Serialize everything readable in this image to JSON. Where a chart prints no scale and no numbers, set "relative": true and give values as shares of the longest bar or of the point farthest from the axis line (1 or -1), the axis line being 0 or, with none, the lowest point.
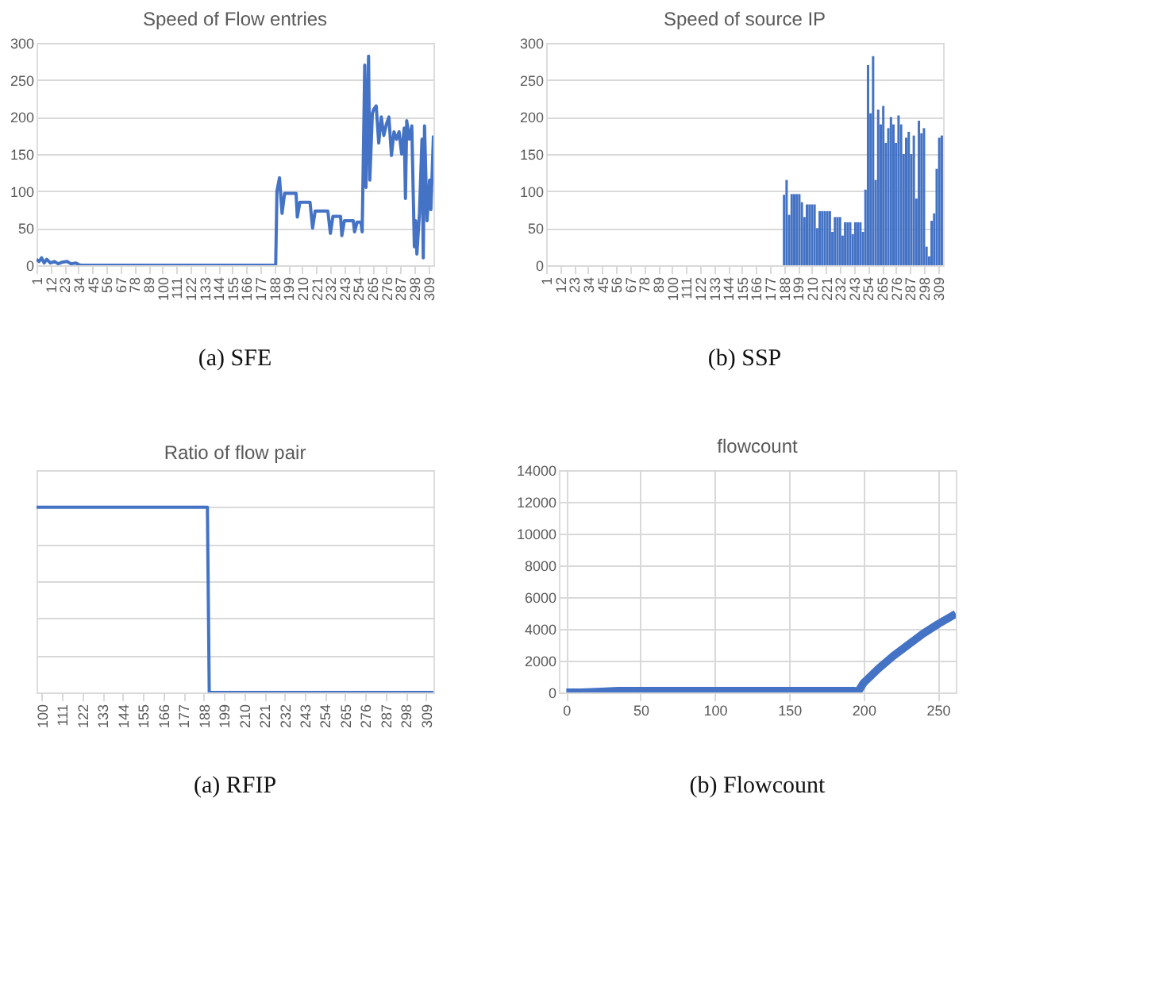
{
  "chart_data": [
    {
      "type": "line",
      "title": "Speed of Flow entries",
      "color": "#4472c4",
      "xlim": [
        1,
        313
      ],
      "xticks": [
        1,
        12,
        23,
        34,
        45,
        56,
        67,
        78,
        89,
        100,
        111,
        122,
        133,
        144,
        155,
        166,
        177,
        188,
        199,
        210,
        221,
        232,
        243,
        254,
        265,
        276,
        287,
        298,
        309
      ],
      "ylim": [
        0,
        300
      ],
      "yticks": [
        0,
        50,
        100,
        150,
        200,
        250,
        300
      ],
      "grid": "y",
      "annotations": [
        "(a) SFE"
      ],
      "x": [
        1,
        3,
        5,
        7,
        9,
        12,
        15,
        18,
        21,
        25,
        28,
        32,
        34,
        36,
        189,
        190,
        192,
        194,
        196,
        205,
        206,
        208,
        216,
        218,
        220,
        230,
        232,
        234,
        240,
        241,
        243,
        250,
        251,
        253,
        256,
        257,
        259,
        260,
        262,
        263,
        265,
        266,
        268,
        270,
        272,
        274,
        276,
        278,
        280,
        282,
        284,
        286,
        288,
        290,
        291,
        292,
        294,
        296,
        298,
        299,
        300,
        302,
        304,
        305,
        306,
        308,
        310,
        311,
        313
      ],
      "values": [
        8,
        5,
        10,
        3,
        8,
        3,
        5,
        2,
        4,
        5,
        2,
        3,
        1,
        0,
        0,
        100,
        118,
        70,
        97,
        97,
        65,
        85,
        85,
        50,
        73,
        73,
        43,
        66,
        66,
        40,
        60,
        60,
        45,
        58,
        58,
        45,
        270,
        105,
        282,
        115,
        205,
        210,
        215,
        165,
        200,
        175,
        190,
        200,
        148,
        180,
        170,
        180,
        150,
        185,
        90,
        195,
        170,
        188,
        25,
        60,
        15,
        70,
        170,
        10,
        188,
        60,
        115,
        75,
        175
      ]
    },
    {
      "type": "bar",
      "title": "Speed of source IP",
      "color": "#4472c4",
      "xlim": [
        1,
        313
      ],
      "xticks": [
        1,
        12,
        23,
        34,
        45,
        56,
        67,
        78,
        89,
        100,
        111,
        122,
        133,
        144,
        155,
        166,
        177,
        188,
        199,
        210,
        221,
        232,
        243,
        254,
        265,
        276,
        287,
        298,
        309
      ],
      "ylim": [
        0,
        300
      ],
      "yticks": [
        0,
        50,
        100,
        150,
        200,
        250,
        300
      ],
      "grid": "y",
      "annotations": [
        "(b) SSP"
      ],
      "x": [
        188,
        190,
        192,
        194,
        196,
        198,
        200,
        202,
        204,
        206,
        208,
        210,
        212,
        214,
        216,
        218,
        220,
        222,
        224,
        226,
        228,
        230,
        232,
        234,
        236,
        238,
        240,
        242,
        244,
        246,
        248,
        250,
        252,
        254,
        256,
        258,
        260,
        262,
        264,
        266,
        268,
        270,
        272,
        274,
        276,
        278,
        280,
        282,
        284,
        286,
        288,
        290,
        292,
        294,
        296,
        298,
        300,
        302,
        304,
        306,
        308,
        310,
        312
      ],
      "values": [
        95,
        115,
        68,
        96,
        96,
        96,
        96,
        85,
        65,
        82,
        82,
        82,
        82,
        50,
        73,
        73,
        73,
        73,
        73,
        45,
        65,
        65,
        65,
        40,
        58,
        58,
        58,
        42,
        58,
        58,
        58,
        45,
        102,
        270,
        205,
        282,
        115,
        210,
        190,
        215,
        165,
        185,
        200,
        190,
        165,
        202,
        190,
        150,
        172,
        180,
        150,
        175,
        90,
        195,
        178,
        185,
        25,
        12,
        60,
        70,
        130,
        172,
        175
      ]
    },
    {
      "type": "line",
      "title": "Ratio of flow pair",
      "color": "#4472c4",
      "relative": true,
      "tick_labels": "x",
      "xlim": [
        97,
        313
      ],
      "xticks": [
        100,
        111,
        122,
        133,
        144,
        155,
        166,
        177,
        188,
        199,
        210,
        221,
        232,
        243,
        254,
        265,
        276,
        287,
        298,
        309
      ],
      "grid": "y",
      "annotations": [
        "(a) RFIP"
      ],
      "x": [
        97,
        190,
        191,
        313
      ],
      "values": [
        1,
        1,
        0,
        0
      ]
    },
    {
      "type": "line",
      "title": "flowcount",
      "color": "#4472c4",
      "xlim": [
        -5,
        262
      ],
      "xticks": [
        0,
        50,
        100,
        150,
        200,
        250
      ],
      "ylim": [
        0,
        14000
      ],
      "yticks": [
        0,
        2000,
        4000,
        6000,
        8000,
        10000,
        12000,
        14000
      ],
      "grid": true,
      "annotations": [
        "(b) Flowcount"
      ],
      "x": [
        0,
        10,
        35,
        100,
        194,
        196,
        200,
        210,
        220,
        230,
        240,
        250,
        262
      ],
      "values": [
        0,
        0,
        100,
        100,
        100,
        0,
        600,
        1500,
        2300,
        3000,
        3700,
        4300,
        4950
      ]
    }
  ]
}
